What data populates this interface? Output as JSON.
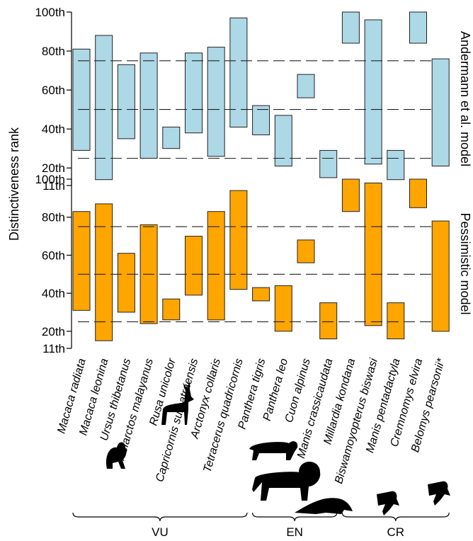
{
  "chart_data": {
    "type": "floating-bar",
    "ylabel": "Distinctiveness rank",
    "y_ticks": [
      "11th",
      "20th",
      "40th",
      "60th",
      "80th",
      "100th"
    ],
    "y_tick_values": [
      11,
      20,
      40,
      60,
      80,
      100
    ],
    "ylim": [
      11,
      100
    ],
    "reference_lines": [
      25,
      50,
      75
    ],
    "species": [
      "Macaca radiata",
      "Macaca leonina",
      "Ursus thibetanus",
      "Helarctos malayanus",
      "Rusa unicolor",
      "Capricornis sumatraensis",
      "Arctonyx collaris",
      "Tetracerus quadricornis",
      "Panthera tigris",
      "Panthera leo",
      "Cuon alpinus",
      "Manis crassicaudata",
      "Millardia kondana",
      "Biswamoyopterus biswasi",
      "Manis pentadactyla",
      "Cremnomys elvira",
      "Belomys pearsonii*"
    ],
    "panels": [
      {
        "title": "Andermann et al. model",
        "color": "#add8e6",
        "ranges": [
          [
            29,
            81
          ],
          [
            14,
            88
          ],
          [
            35,
            73
          ],
          [
            25,
            79
          ],
          [
            30,
            41
          ],
          [
            38,
            79
          ],
          [
            26,
            82
          ],
          [
            41,
            97
          ],
          [
            37,
            52
          ],
          [
            21,
            47
          ],
          [
            56,
            68
          ],
          [
            15,
            29
          ],
          [
            84,
            100
          ],
          [
            22,
            96
          ],
          [
            14,
            29
          ],
          [
            84,
            100
          ],
          [
            21,
            76
          ]
        ]
      },
      {
        "title": "Pessimistic model",
        "color": "#ffa500",
        "ranges": [
          [
            31,
            83
          ],
          [
            15,
            87
          ],
          [
            30,
            61
          ],
          [
            24,
            76
          ],
          [
            26,
            37
          ],
          [
            39,
            70
          ],
          [
            26,
            83
          ],
          [
            42,
            94
          ],
          [
            36,
            43
          ],
          [
            20,
            44
          ],
          [
            56,
            68
          ],
          [
            16,
            35
          ],
          [
            83,
            100
          ],
          [
            23,
            98
          ],
          [
            16,
            35
          ],
          [
            85,
            100
          ],
          [
            20,
            78
          ]
        ]
      }
    ],
    "groups": [
      {
        "label": "VU",
        "first": 0,
        "last": 7
      },
      {
        "label": "EN",
        "first": 8,
        "last": 11
      },
      {
        "label": "CR",
        "first": 12,
        "last": 16
      }
    ]
  },
  "icons": [
    {
      "name": "macaque-silhouette-icon",
      "species_index": 0,
      "shape": "monkey"
    },
    {
      "name": "deer-silhouette-icon",
      "species_index": 4,
      "shape": "deer"
    },
    {
      "name": "tiger-silhouette-icon",
      "species_index": 8,
      "shape": "tiger"
    },
    {
      "name": "lion-silhouette-icon",
      "species_index": 9,
      "shape": "lion"
    },
    {
      "name": "pangolin-silhouette-icon",
      "species_index": 11,
      "shape": "pangolin"
    },
    {
      "name": "flying-squirrel-silhouette-icon",
      "species_index": 13,
      "shape": "squirrel"
    },
    {
      "name": "flying-squirrel-silhouette-icon",
      "species_index": 16,
      "shape": "squirrel"
    }
  ]
}
